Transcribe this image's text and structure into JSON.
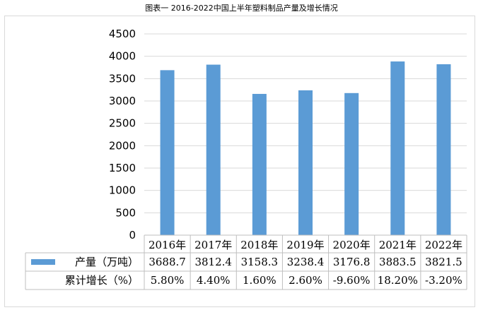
{
  "title": "图表一 2016-2022中国上半年塑料制品产量及增长情况",
  "colors": {
    "bar": "#5b9bd5",
    "grid": "#d9d9d9",
    "border": "#bfbfbf"
  },
  "chart_data": {
    "type": "bar",
    "title": "图表一 2016-2022中国上半年塑料制品产量及增长情况",
    "categories": [
      "2016年",
      "2017年",
      "2018年",
      "2019年",
      "2020年",
      "2021年",
      "2022年"
    ],
    "series": [
      {
        "name": "产量（万吨）",
        "values": [
          3688.7,
          3812.4,
          3158.3,
          3238.4,
          3176.8,
          3883.5,
          3821.5
        ]
      }
    ],
    "table_rows": [
      {
        "label": "产量（万吨）",
        "values": [
          "3688.7",
          "3812.4",
          "3158.3",
          "3238.4",
          "3176.8",
          "3883.5",
          "3821.5"
        ],
        "has_legend_key": true
      },
      {
        "label": "累计增长（%）",
        "values": [
          "5.80%",
          "4.40%",
          "1.60%",
          "2.60%",
          "-9.60%",
          "18.20%",
          "-3.20%"
        ],
        "has_legend_key": false
      }
    ],
    "ylim": [
      0,
      4500
    ],
    "yticks": [
      0,
      500,
      1000,
      1500,
      2000,
      2500,
      3000,
      3500,
      4000,
      4500
    ],
    "grid": true,
    "legend": "data-table"
  }
}
